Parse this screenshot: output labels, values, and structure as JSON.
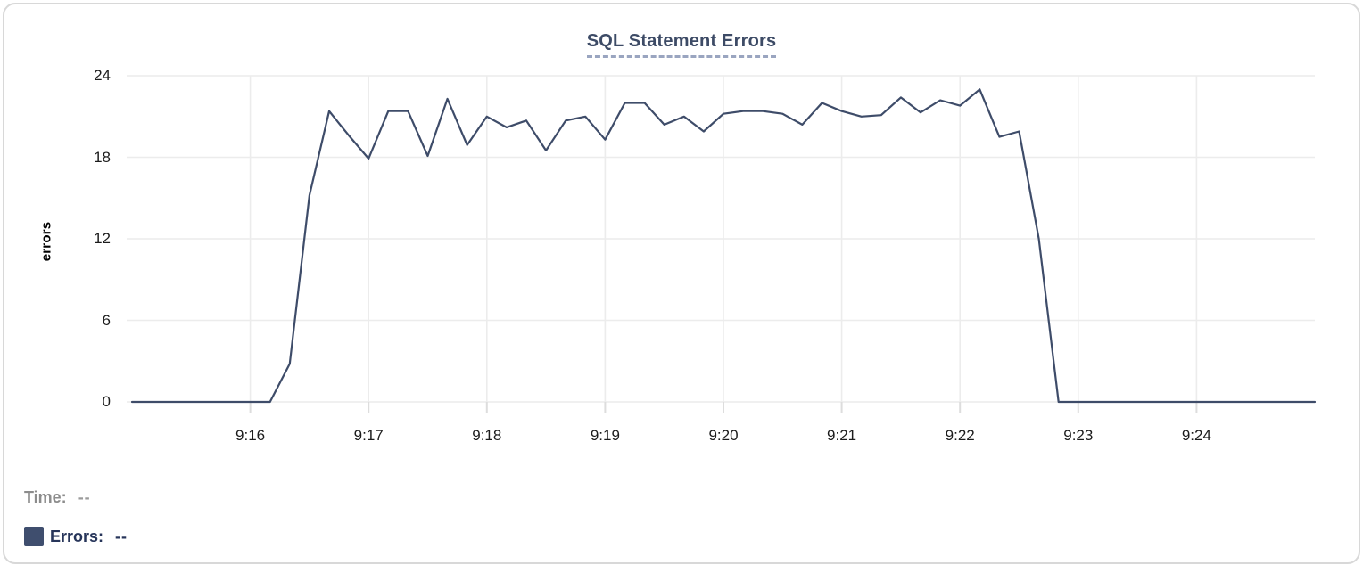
{
  "chart": {
    "ylabel": "errors"
  },
  "legend": {
    "time_label": "Time:",
    "time_value": "--",
    "errors_label": "Errors:",
    "errors_value": "--",
    "swatch_color": "#3f4e6e"
  },
  "colors": {
    "line": "#3e4c69",
    "gridline": "#ececec",
    "tick_mark": "#dddddd",
    "title": "#3d4b66",
    "title_underline": "#9aa5c0",
    "legend_gray": "#8c8c8c",
    "legend_navy": "#27355a",
    "card_border": "#d8d8d8"
  },
  "chart_data": {
    "type": "line",
    "title": "SQL Statement Errors",
    "xlabel": "",
    "ylabel": "errors",
    "x_start": "9:15:00",
    "x_end": "9:25:00",
    "interval_seconds": 10,
    "duration_seconds": 600,
    "ylim": [
      0,
      24
    ],
    "y_ticks": [
      0,
      6,
      12,
      18,
      24
    ],
    "x_ticks": [
      {
        "label": "9:16",
        "t": 60
      },
      {
        "label": "9:17",
        "t": 120
      },
      {
        "label": "9:18",
        "t": 180
      },
      {
        "label": "9:19",
        "t": 240
      },
      {
        "label": "9:20",
        "t": 300
      },
      {
        "label": "9:21",
        "t": 360
      },
      {
        "label": "9:22",
        "t": 420
      },
      {
        "label": "9:23",
        "t": 480
      },
      {
        "label": "9:24",
        "t": 540
      }
    ],
    "grid": true,
    "legend_position": "bottom-left",
    "series": [
      {
        "name": "Errors",
        "color": "#3e4c69",
        "values": [
          0,
          0,
          0,
          0,
          0,
          0,
          0,
          0,
          2.8,
          15.2,
          21.4,
          19.6,
          17.9,
          21.4,
          21.4,
          18.1,
          22.3,
          18.9,
          21,
          20.2,
          20.7,
          18.5,
          20.7,
          21,
          19.3,
          22,
          22,
          20.4,
          21,
          19.9,
          21.2,
          21.4,
          21.4,
          21.2,
          20.4,
          22,
          21.4,
          21,
          21.1,
          22.4,
          21.3,
          22.2,
          21.8,
          23,
          19.5,
          19.9,
          12,
          0,
          0,
          0,
          0,
          0,
          0,
          0,
          0,
          0,
          0,
          0,
          0,
          0,
          0
        ]
      }
    ]
  }
}
